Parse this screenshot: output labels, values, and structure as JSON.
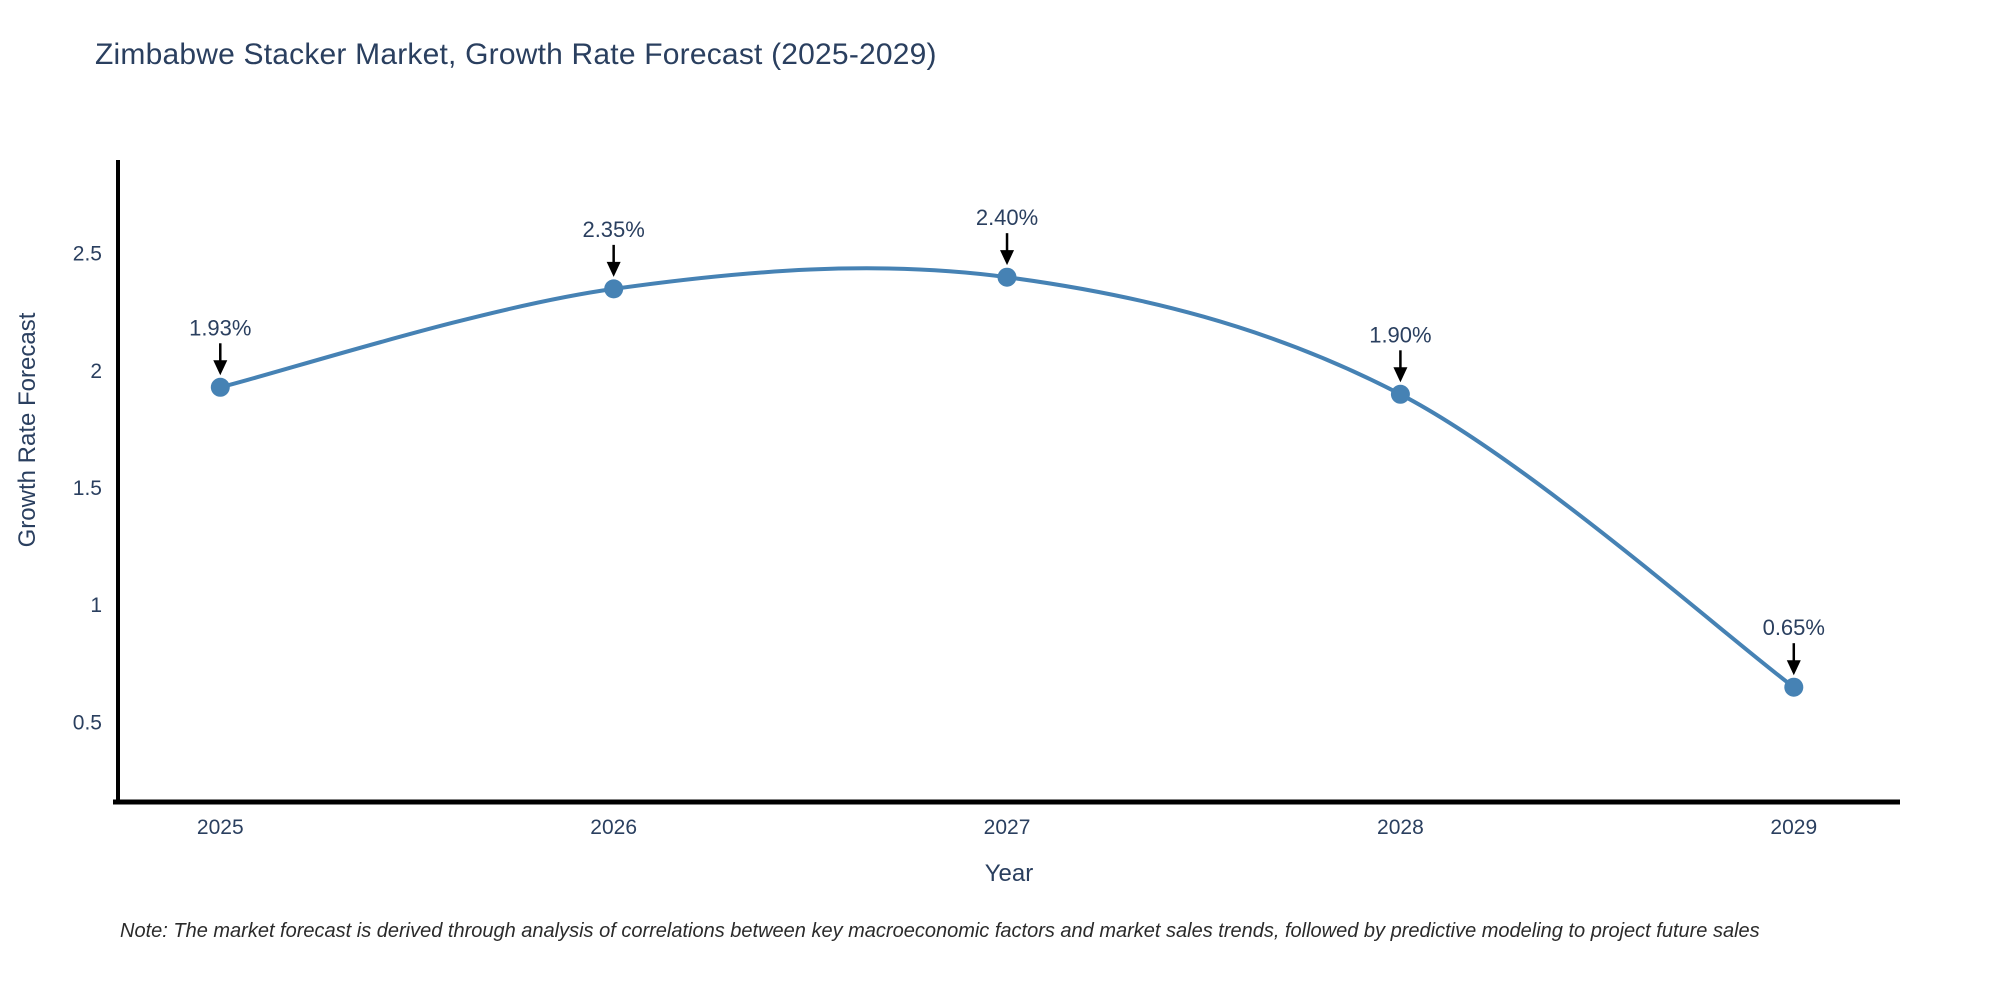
{
  "chart_data": {
    "type": "line",
    "title": "Zimbabwe Stacker Market, Growth Rate Forecast (2025-2029)",
    "categories": [
      2025,
      2026,
      2027,
      2028,
      2029
    ],
    "values": [
      1.93,
      2.35,
      2.4,
      1.9,
      0.65
    ],
    "point_labels": [
      "1.93%",
      "2.35%",
      "2.40%",
      "1.90%",
      "0.65%"
    ],
    "xlabel": "Year",
    "ylabel": "Growth Rate Forecast",
    "yticks": [
      0.5,
      1,
      1.5,
      2,
      2.5
    ],
    "ytick_labels": [
      "0.5",
      "1",
      "1.5",
      "2",
      "2.5"
    ],
    "ylim": [
      0.16,
      2.9
    ],
    "xlim": [
      2024.74,
      2029.27
    ],
    "grid": false,
    "legend": "none",
    "line_color": "#4682b4",
    "marker_color": "#4682b4",
    "arrow_color": "#000000",
    "axis_color": "#000000",
    "text_color": "#2a3f5f",
    "annotation_color": "#2a3f5f"
  },
  "note": {
    "text": "Note: The market forecast is derived through analysis of correlations between key macroeconomic factors and market sales trends, followed by predictive modeling to project future sales"
  }
}
